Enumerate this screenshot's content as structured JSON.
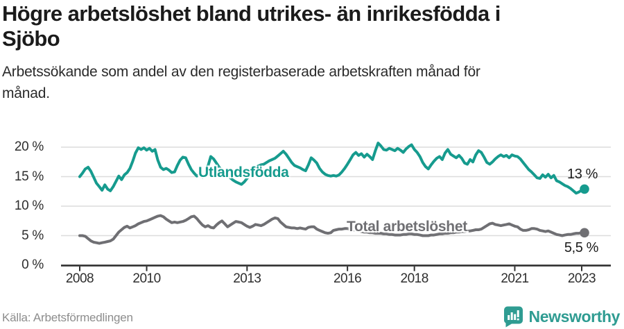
{
  "header": {
    "title_line1": "Högre arbetslöshet bland utrikes- än inrikesfödda i",
    "title_line2": "Sjöbo",
    "subtitle_line1": "Arbetssökande som andel av den registerbaserade arbetskraften månad för",
    "subtitle_line2": "månad."
  },
  "chart_data": {
    "type": "line",
    "unit": "%",
    "frequency": "monthly",
    "x_start": "2008-01",
    "x_end": "2023-02",
    "ylim": [
      0,
      22
    ],
    "grid": "horizontal",
    "legend_position": "inline-labels",
    "y_ticks": [
      {
        "value": 0,
        "label": "0 %"
      },
      {
        "value": 5,
        "label": "5 %"
      },
      {
        "value": 10,
        "label": "10 %"
      },
      {
        "value": 15,
        "label": "15 %"
      },
      {
        "value": 20,
        "label": "20 %"
      }
    ],
    "x_ticks": [
      {
        "year": 2008,
        "label": "2008"
      },
      {
        "year": 2010,
        "label": "2010"
      },
      {
        "year": 2013,
        "label": "2013"
      },
      {
        "year": 2016,
        "label": "2016"
      },
      {
        "year": 2018,
        "label": "2018"
      },
      {
        "year": 2021,
        "label": "2021"
      },
      {
        "year": 2023,
        "label": "2023"
      }
    ],
    "series": [
      {
        "name": "Utlandsfödda",
        "color": "#169b8e",
        "end_label": "13 %",
        "end_value": 13,
        "values": [
          15.0,
          15.6,
          16.3,
          16.6,
          15.9,
          14.9,
          13.9,
          13.3,
          12.7,
          13.6,
          12.9,
          12.6,
          13.3,
          14.2,
          15.1,
          14.5,
          15.3,
          15.7,
          16.4,
          17.6,
          19.0,
          19.9,
          19.6,
          19.9,
          19.5,
          19.8,
          19.3,
          19.6,
          17.8,
          16.6,
          16.2,
          16.4,
          16.1,
          15.7,
          15.8,
          16.9,
          17.8,
          18.3,
          18.2,
          17.1,
          16.2,
          15.6,
          15.1,
          15.4,
          14.9,
          15.5,
          16.8,
          18.4,
          18.0,
          17.3,
          16.6,
          16.0,
          15.6,
          15.2,
          14.8,
          14.4,
          14.1,
          13.9,
          13.7,
          14.1,
          14.7,
          15.4,
          16.0,
          16.5,
          16.8,
          17.0,
          17.1,
          17.4,
          17.7,
          17.9,
          18.1,
          18.5,
          18.9,
          19.3,
          18.8,
          18.1,
          17.4,
          16.9,
          16.7,
          16.5,
          16.2,
          16.0,
          17.0,
          18.2,
          17.8,
          17.3,
          16.4,
          15.8,
          15.4,
          15.2,
          15.1,
          15.2,
          15.1,
          15.3,
          15.8,
          16.4,
          17.1,
          17.9,
          18.7,
          19.1,
          18.6,
          18.9,
          18.3,
          18.8,
          18.4,
          17.9,
          19.4,
          20.7,
          20.2,
          19.6,
          19.5,
          19.8,
          19.6,
          19.4,
          19.8,
          19.5,
          19.1,
          19.7,
          20.1,
          20.4,
          19.6,
          19.1,
          18.4,
          17.4,
          16.7,
          16.3,
          17.0,
          17.6,
          18.1,
          18.4,
          17.9,
          19.0,
          19.6,
          18.8,
          18.5,
          18.2,
          18.6,
          18.1,
          17.3,
          17.1,
          17.9,
          17.5,
          18.7,
          19.4,
          19.1,
          18.3,
          17.4,
          17.1,
          17.5,
          18.0,
          18.4,
          18.7,
          18.4,
          18.6,
          18.2,
          18.7,
          18.5,
          18.4,
          18.0,
          17.4,
          16.8,
          16.2,
          15.8,
          15.3,
          14.8,
          14.7,
          15.3,
          14.9,
          15.4,
          14.8,
          15.2,
          14.3,
          14.1,
          13.8,
          13.5,
          13.3,
          13.0,
          12.6,
          12.2,
          12.4,
          12.7,
          12.9
        ]
      },
      {
        "name": "Total arbetslöshet",
        "color": "#6f6f73",
        "end_label": "5,5 %",
        "end_value": 5.5,
        "values": [
          5.0,
          5.0,
          4.9,
          4.5,
          4.1,
          3.9,
          3.8,
          3.7,
          3.8,
          3.9,
          4.0,
          4.1,
          4.4,
          5.0,
          5.6,
          6.0,
          6.4,
          6.6,
          6.3,
          6.5,
          6.7,
          7.0,
          7.2,
          7.4,
          7.5,
          7.7,
          7.9,
          8.1,
          8.3,
          8.4,
          8.2,
          7.8,
          7.5,
          7.2,
          7.3,
          7.2,
          7.3,
          7.4,
          7.6,
          7.9,
          8.2,
          8.3,
          7.9,
          7.3,
          6.8,
          6.5,
          6.7,
          6.4,
          6.3,
          6.8,
          7.2,
          7.5,
          7.0,
          6.5,
          6.8,
          7.1,
          7.4,
          7.3,
          7.2,
          6.9,
          6.6,
          6.4,
          6.6,
          6.9,
          6.8,
          6.7,
          6.9,
          7.2,
          7.5,
          7.8,
          8.0,
          7.9,
          7.3,
          6.9,
          6.5,
          6.4,
          6.3,
          6.3,
          6.2,
          6.3,
          6.2,
          6.1,
          6.4,
          6.5,
          6.5,
          6.1,
          5.9,
          5.7,
          5.5,
          5.4,
          5.5,
          5.9,
          6.0,
          6.1,
          6.1,
          6.2,
          6.2,
          6.1,
          6.0,
          5.9,
          5.8,
          5.7,
          5.6,
          5.6,
          5.5,
          5.5,
          5.4,
          5.4,
          5.4,
          5.3,
          5.3,
          5.2,
          5.2,
          5.1,
          5.1,
          5.1,
          5.2,
          5.2,
          5.3,
          5.3,
          5.2,
          5.2,
          5.1,
          5.0,
          5.0,
          5.0,
          5.1,
          5.1,
          5.2,
          5.3,
          5.3,
          5.4,
          5.4,
          5.5,
          5.5,
          5.6,
          5.6,
          5.7,
          5.7,
          5.8,
          5.8,
          5.9,
          6.0,
          6.0,
          6.1,
          6.4,
          6.7,
          7.0,
          7.1,
          6.9,
          6.8,
          6.7,
          6.8,
          6.9,
          7.0,
          6.8,
          6.6,
          6.5,
          6.1,
          5.9,
          5.9,
          6.0,
          6.2,
          6.2,
          6.1,
          5.9,
          5.8,
          5.7,
          5.8,
          5.6,
          5.4,
          5.2,
          5.1,
          5.0,
          5.1,
          5.2,
          5.2,
          5.3,
          5.4,
          5.4,
          5.5,
          5.5
        ]
      }
    ],
    "colors": {
      "grid": "#dcdcdc",
      "axis": "#2f2f2f",
      "tick_text": "#2e2e2e"
    }
  },
  "footer": {
    "source": "Källa: Arbetsförmedlingen",
    "brand_name": "Newsworthy",
    "brand_color": "#2f9c92"
  }
}
